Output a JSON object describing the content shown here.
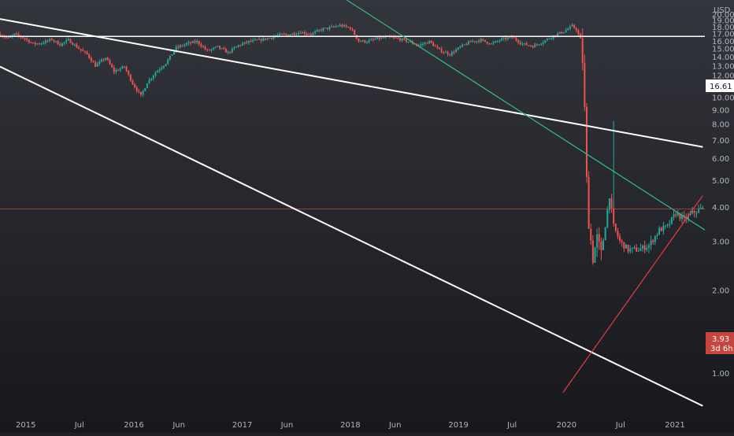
{
  "theme": {
    "bg_top": "#33353c",
    "bg_bottom": "#17181c",
    "axis_text": "#b2b5be",
    "up_color": "#26a69a",
    "down_color": "#ef5350",
    "white_line": "#ffffff",
    "green_line": "#2ebd85",
    "red_line": "#f23645",
    "hline_color": "#ffffff",
    "price_line_color": "#c8453f"
  },
  "chart_data": {
    "type": "candlestick",
    "currency_label": "USD",
    "y_ticks": [
      "20.00",
      "19.00",
      "18.00",
      "17.00",
      "16.00",
      "15.00",
      "14.00",
      "13.00",
      "12.00",
      "11.00",
      "10.00",
      "9.00",
      "8.00",
      "7.00",
      "6.00",
      "5.00",
      "4.00",
      "3.00",
      "2.00",
      "1.00"
    ],
    "y_scale": "log",
    "y_range": [
      0.72,
      22.5
    ],
    "x_range": [
      "2014-10-06",
      "2021-04-12"
    ],
    "x_ticks": [
      {
        "label": "2015",
        "date": "2015-01-01"
      },
      {
        "label": "Jul",
        "date": "2015-07-01"
      },
      {
        "label": "2016",
        "date": "2016-01-01"
      },
      {
        "label": "Jun",
        "date": "2016-06-01"
      },
      {
        "label": "2017",
        "date": "2017-01-01"
      },
      {
        "label": "Jun",
        "date": "2017-06-01"
      },
      {
        "label": "2018",
        "date": "2018-01-01"
      },
      {
        "label": "Jun",
        "date": "2018-06-01"
      },
      {
        "label": "2019",
        "date": "2019-01-01"
      },
      {
        "label": "Jul",
        "date": "2019-07-01"
      },
      {
        "label": "2020",
        "date": "2020-01-01"
      },
      {
        "label": "Jul",
        "date": "2020-07-01"
      },
      {
        "label": "2021",
        "date": "2021-01-01"
      }
    ],
    "horizontal_line": {
      "value": 16.61,
      "label": "16.61"
    },
    "last_price": {
      "value": 3.93,
      "label": "3.93",
      "countdown": "3d 6h"
    },
    "trend_lines": [
      {
        "name": "upper-channel",
        "color": "white",
        "p1": {
          "date": "2014-10-06",
          "price": 19.2
        },
        "p2": {
          "date": "2021-04-05",
          "price": 6.6
        }
      },
      {
        "name": "lower-channel",
        "color": "white",
        "p1": {
          "date": "2014-10-06",
          "price": 12.9
        },
        "p2": {
          "date": "2021-04-05",
          "price": 0.76
        }
      },
      {
        "name": "descending-resistance",
        "color": "green",
        "p1": {
          "date": "2017-06-01",
          "price": 31.0
        },
        "p2": {
          "date": "2021-04-12",
          "price": 3.3
        }
      },
      {
        "name": "rising-support",
        "color": "red",
        "p1": {
          "date": "2019-12-20",
          "price": 0.85
        },
        "p2": {
          "date": "2021-04-05",
          "price": 4.4
        }
      }
    ],
    "price_path": [
      [
        "2014-10-06",
        17.0
      ],
      [
        "2014-11-10",
        16.3
      ],
      [
        "2014-12-01",
        16.9
      ],
      [
        "2015-01-05",
        16.3
      ],
      [
        "2015-02-02",
        15.6
      ],
      [
        "2015-03-02",
        15.7
      ],
      [
        "2015-04-06",
        16.2
      ],
      [
        "2015-05-04",
        15.5
      ],
      [
        "2015-06-01",
        16.1
      ],
      [
        "2015-07-06",
        15.0
      ],
      [
        "2015-08-03",
        14.3
      ],
      [
        "2015-08-31",
        13.0
      ],
      [
        "2015-10-05",
        13.9
      ],
      [
        "2015-11-02",
        12.4
      ],
      [
        "2015-12-07",
        12.9
      ],
      [
        "2016-01-04",
        11.2
      ],
      [
        "2016-02-01",
        10.1
      ],
      [
        "2016-02-22",
        11.3
      ],
      [
        "2016-03-21",
        12.3
      ],
      [
        "2016-04-25",
        13.3
      ],
      [
        "2016-05-30",
        15.1
      ],
      [
        "2016-07-04",
        15.6
      ],
      [
        "2016-08-08",
        15.9
      ],
      [
        "2016-09-12",
        14.7
      ],
      [
        "2016-10-17",
        15.2
      ],
      [
        "2016-11-21",
        14.5
      ],
      [
        "2016-12-26",
        15.4
      ],
      [
        "2017-01-30",
        15.9
      ],
      [
        "2017-03-06",
        16.1
      ],
      [
        "2017-04-10",
        16.4
      ],
      [
        "2017-05-15",
        16.8
      ],
      [
        "2017-06-19",
        16.9
      ],
      [
        "2017-07-24",
        17.2
      ],
      [
        "2017-08-28",
        16.9
      ],
      [
        "2017-10-02",
        17.6
      ],
      [
        "2017-11-06",
        17.9
      ],
      [
        "2017-12-04",
        18.2
      ],
      [
        "2018-01-08",
        17.8
      ],
      [
        "2018-02-05",
        16.0
      ],
      [
        "2018-03-05",
        15.9
      ],
      [
        "2018-04-09",
        16.3
      ],
      [
        "2018-05-14",
        16.5
      ],
      [
        "2018-06-18",
        16.3
      ],
      [
        "2018-07-23",
        15.9
      ],
      [
        "2018-08-27",
        15.4
      ],
      [
        "2018-10-01",
        15.9
      ],
      [
        "2018-11-05",
        14.8
      ],
      [
        "2018-12-10",
        14.3
      ],
      [
        "2019-01-14",
        15.2
      ],
      [
        "2019-02-18",
        15.9
      ],
      [
        "2019-03-25",
        16.1
      ],
      [
        "2019-04-29",
        15.6
      ],
      [
        "2019-06-03",
        16.2
      ],
      [
        "2019-07-08",
        16.5
      ],
      [
        "2019-08-12",
        15.6
      ],
      [
        "2019-09-16",
        15.3
      ],
      [
        "2019-10-21",
        15.9
      ],
      [
        "2019-11-25",
        16.7
      ],
      [
        "2019-12-30",
        17.3
      ],
      [
        "2020-01-27",
        18.1
      ],
      [
        "2020-02-10",
        17.6
      ],
      [
        "2020-02-24",
        16.2
      ],
      [
        "2020-03-02",
        13.5
      ],
      [
        "2020-03-09",
        9.0
      ],
      [
        "2020-03-16",
        5.0
      ],
      [
        "2020-03-23",
        3.5
      ],
      [
        "2020-04-06",
        2.6
      ],
      [
        "2020-04-20",
        3.1
      ],
      [
        "2020-05-04",
        2.7
      ],
      [
        "2020-06-01",
        4.4
      ],
      [
        "2020-06-15",
        3.4
      ],
      [
        "2020-07-06",
        3.0
      ],
      [
        "2020-08-03",
        2.8
      ],
      [
        "2020-09-07",
        2.8
      ],
      [
        "2020-10-12",
        2.9
      ],
      [
        "2020-11-16",
        3.3
      ],
      [
        "2020-12-14",
        3.4
      ],
      [
        "2021-01-11",
        3.8
      ],
      [
        "2021-02-08",
        3.6
      ],
      [
        "2021-03-08",
        3.8
      ],
      [
        "2021-04-05",
        3.93
      ]
    ],
    "candle_start": "2014-10-06",
    "candle_end": "2021-04-05",
    "candle_interval_days": 7
  }
}
